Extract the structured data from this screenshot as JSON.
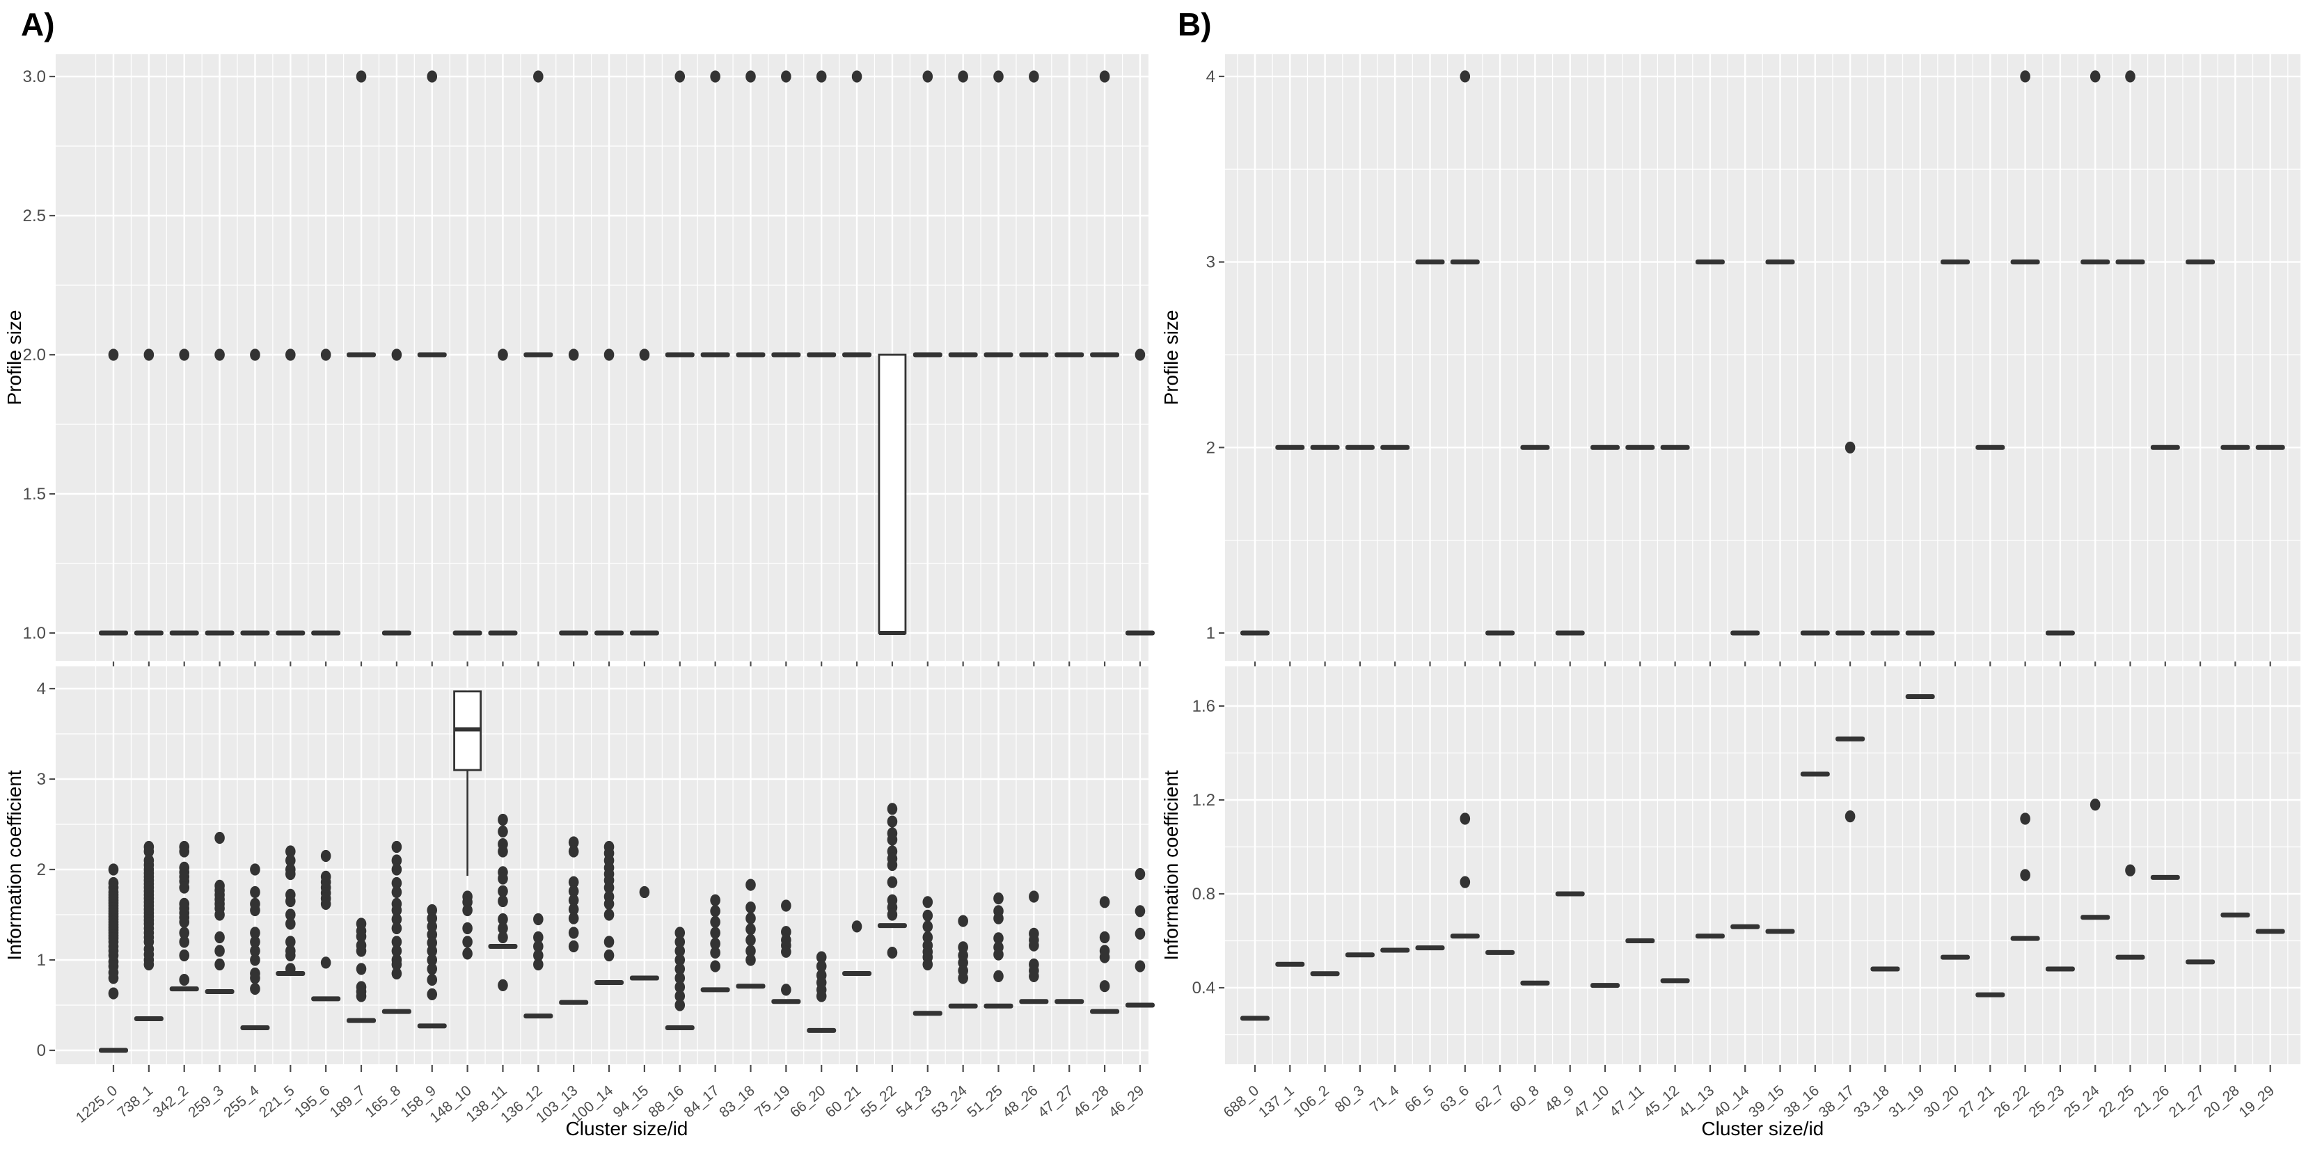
{
  "figure": {
    "panel_a_label": "A)",
    "panel_b_label": "B)",
    "colors": {
      "panel_bg": "#EBEBEB",
      "grid": "#FFFFFF",
      "mark": "#333333",
      "axis_text": "#4D4D4D",
      "title_text": "#000000",
      "box_fill": "#FFFFFF"
    }
  },
  "chart_data": [
    {
      "id": "a_top",
      "type": "boxplot-scatter",
      "title": "",
      "xlabel": "",
      "ylabel": "Profile size",
      "ytick_values": [
        3.0,
        2.5,
        2.0,
        1.5,
        1.0
      ],
      "ytick_labels": [
        "3.0",
        "2.5",
        "2.0",
        "1.5",
        "1.0"
      ],
      "ylim": [
        0.95,
        3.08
      ],
      "show_x_tick_labels": false,
      "categories": [
        "1225_0",
        "738_1",
        "342_2",
        "259_3",
        "255_4",
        "221_5",
        "195_6",
        "189_7",
        "165_8",
        "158_9",
        "148_10",
        "138_11",
        "136_12",
        "103_13",
        "100_14",
        "94_15",
        "88_16",
        "84_17",
        "83_18",
        "75_19",
        "66_20",
        "60_21",
        "55_22",
        "54_23",
        "53_24",
        "51_25",
        "48_26",
        "47_27",
        "46_28",
        "46_29"
      ],
      "dashes": [
        [
          0,
          1
        ],
        [
          1,
          1
        ],
        [
          2,
          1
        ],
        [
          3,
          1
        ],
        [
          4,
          1
        ],
        [
          5,
          1
        ],
        [
          6,
          1
        ],
        [
          7,
          2
        ],
        [
          8,
          1
        ],
        [
          9,
          2
        ],
        [
          10,
          1
        ],
        [
          11,
          1
        ],
        [
          12,
          2
        ],
        [
          13,
          1
        ],
        [
          14,
          1
        ],
        [
          15,
          1
        ],
        [
          16,
          2
        ],
        [
          17,
          2
        ],
        [
          18,
          2
        ],
        [
          19,
          2
        ],
        [
          20,
          2
        ],
        [
          21,
          2
        ],
        [
          23,
          2
        ],
        [
          24,
          2
        ],
        [
          25,
          2
        ],
        [
          26,
          2
        ],
        [
          27,
          2
        ],
        [
          28,
          2
        ],
        [
          29,
          1
        ]
      ],
      "dots": [
        [
          0,
          2
        ],
        [
          1,
          2
        ],
        [
          2,
          2
        ],
        [
          3,
          2
        ],
        [
          4,
          2
        ],
        [
          5,
          2
        ],
        [
          6,
          2
        ],
        [
          7,
          3
        ],
        [
          8,
          2
        ],
        [
          9,
          3
        ],
        [
          11,
          2
        ],
        [
          12,
          3
        ],
        [
          13,
          2
        ],
        [
          14,
          2
        ],
        [
          15,
          2
        ],
        [
          16,
          3
        ],
        [
          17,
          3
        ],
        [
          18,
          3
        ],
        [
          19,
          3
        ],
        [
          20,
          3
        ],
        [
          21,
          3
        ],
        [
          23,
          3
        ],
        [
          24,
          3
        ],
        [
          25,
          3
        ],
        [
          26,
          3
        ],
        [
          28,
          3
        ],
        [
          29,
          2
        ]
      ],
      "boxes": [
        {
          "col": 22,
          "q1": 1.0,
          "median": 1.0,
          "q3": 2.0
        }
      ]
    },
    {
      "id": "b_top",
      "type": "boxplot-scatter",
      "title": "",
      "xlabel": "",
      "ylabel": "Profile size",
      "ytick_values": [
        4,
        3,
        2,
        1
      ],
      "ytick_labels": [
        "4",
        "3",
        "2",
        "1"
      ],
      "ylim": [
        0.93,
        4.12
      ],
      "show_x_tick_labels": false,
      "categories": [
        "688_0",
        "137_1",
        "106_2",
        "80_3",
        "71_4",
        "66_5",
        "63_6",
        "62_7",
        "60_8",
        "48_9",
        "47_10",
        "47_11",
        "45_12",
        "41_13",
        "40_14",
        "39_15",
        "38_16",
        "38_17",
        "33_18",
        "31_19",
        "30_20",
        "27_21",
        "26_22",
        "25_23",
        "25_24",
        "22_25",
        "21_26",
        "21_27",
        "20_28",
        "19_29"
      ],
      "dashes": [
        [
          0,
          1
        ],
        [
          1,
          2
        ],
        [
          2,
          2
        ],
        [
          3,
          2
        ],
        [
          4,
          2
        ],
        [
          5,
          3
        ],
        [
          6,
          3
        ],
        [
          7,
          1
        ],
        [
          8,
          2
        ],
        [
          9,
          1
        ],
        [
          10,
          2
        ],
        [
          11,
          2
        ],
        [
          12,
          2
        ],
        [
          13,
          3
        ],
        [
          14,
          1
        ],
        [
          15,
          3
        ],
        [
          16,
          1
        ],
        [
          17,
          1
        ],
        [
          18,
          1
        ],
        [
          19,
          1
        ],
        [
          20,
          3
        ],
        [
          21,
          2
        ],
        [
          22,
          3
        ],
        [
          23,
          1
        ],
        [
          24,
          3
        ],
        [
          25,
          3
        ],
        [
          26,
          2
        ],
        [
          27,
          3
        ],
        [
          28,
          2
        ],
        [
          29,
          2
        ]
      ],
      "dots": [
        [
          6,
          4
        ],
        [
          17,
          2
        ],
        [
          22,
          4
        ],
        [
          24,
          4
        ],
        [
          25,
          4
        ]
      ],
      "boxes": []
    },
    {
      "id": "a_bottom",
      "type": "boxplot-scatter",
      "title": "",
      "xlabel": "Cluster size/id",
      "ylabel": "Information coefficient",
      "ytick_values": [
        4,
        3,
        2,
        1,
        0
      ],
      "ytick_labels": [
        "4",
        "3",
        "2",
        "1",
        "0"
      ],
      "ylim": [
        -0.15,
        4.25
      ],
      "show_x_tick_labels": true,
      "categories": [
        "1225_0",
        "738_1",
        "342_2",
        "259_3",
        "255_4",
        "221_5",
        "195_6",
        "189_7",
        "165_8",
        "158_9",
        "148_10",
        "138_11",
        "136_12",
        "103_13",
        "100_14",
        "94_15",
        "88_16",
        "84_17",
        "83_18",
        "75_19",
        "66_20",
        "60_21",
        "55_22",
        "54_23",
        "53_24",
        "51_25",
        "48_26",
        "47_27",
        "46_28",
        "46_29"
      ],
      "dashes": [
        [
          0,
          0.0
        ],
        [
          1,
          0.35
        ],
        [
          2,
          0.68
        ],
        [
          3,
          0.65
        ],
        [
          4,
          0.25
        ],
        [
          5,
          0.85
        ],
        [
          6,
          0.57
        ],
        [
          7,
          0.33
        ],
        [
          8,
          0.43
        ],
        [
          9,
          0.27
        ],
        [
          11,
          1.15
        ],
        [
          12,
          0.38
        ],
        [
          13,
          0.53
        ],
        [
          14,
          0.75
        ],
        [
          15,
          0.8
        ],
        [
          16,
          0.25
        ],
        [
          17,
          0.67
        ],
        [
          18,
          0.71
        ],
        [
          19,
          0.54
        ],
        [
          20,
          0.22
        ],
        [
          21,
          0.85
        ],
        [
          22,
          1.38
        ],
        [
          23,
          0.41
        ],
        [
          24,
          0.49
        ],
        [
          25,
          0.49
        ],
        [
          26,
          0.54
        ],
        [
          27,
          0.54
        ],
        [
          28,
          0.43
        ],
        [
          29,
          0.5
        ]
      ],
      "dot_columns": {
        "0": [
          2.0,
          1.85,
          1.8,
          1.75,
          1.72,
          1.69,
          1.66,
          1.63,
          1.6,
          1.57,
          1.54,
          1.51,
          1.48,
          1.45,
          1.42,
          1.39,
          1.36,
          1.33,
          1.3,
          1.27,
          1.24,
          1.2,
          1.15,
          1.1,
          1.05,
          0.98,
          0.93,
          0.86,
          0.8,
          0.63
        ],
        "1": [
          2.25,
          2.2,
          2.1,
          2.05,
          2.0,
          1.96,
          1.92,
          1.88,
          1.84,
          1.8,
          1.76,
          1.72,
          1.68,
          1.64,
          1.6,
          1.56,
          1.52,
          1.48,
          1.44,
          1.4,
          1.35,
          1.3,
          1.25,
          1.2,
          1.12,
          1.06,
          1.0,
          0.95
        ],
        "2": [
          2.25,
          2.2,
          2.02,
          1.97,
          1.92,
          1.87,
          1.8,
          1.62,
          1.57,
          1.52,
          1.47,
          1.42,
          1.3,
          1.2,
          1.05,
          0.78
        ],
        "3": [
          2.35,
          1.82,
          1.77,
          1.72,
          1.67,
          1.62,
          1.57,
          1.5,
          1.25,
          1.1,
          0.95
        ],
        "4": [
          2.0,
          1.75,
          1.62,
          1.55,
          1.3,
          1.2,
          1.1,
          1.0,
          0.85,
          0.8,
          0.68
        ],
        "5": [
          2.2,
          2.1,
          2.0,
          1.95,
          1.72,
          1.65,
          1.5,
          1.4,
          1.2,
          1.1,
          1.05,
          0.9
        ],
        "6": [
          2.15,
          1.92,
          1.86,
          1.8,
          1.74,
          1.68,
          1.62,
          0.97
        ],
        "7": [
          1.4,
          1.32,
          1.26,
          1.16,
          1.1,
          0.9,
          0.7,
          0.65,
          0.6
        ],
        "8": [
          2.25,
          2.1,
          2.0,
          1.85,
          1.75,
          1.62,
          1.55,
          1.45,
          1.35,
          1.2,
          1.1,
          1.0,
          0.95,
          0.85
        ],
        "9": [
          1.55,
          1.46,
          1.37,
          1.28,
          1.19,
          1.1,
          1.0,
          0.9,
          0.78,
          0.62
        ],
        "10": [
          1.7,
          1.64,
          1.55,
          1.35,
          1.2,
          1.07
        ],
        "11": [
          2.55,
          2.42,
          2.28,
          2.2,
          1.97,
          1.9,
          1.76,
          1.65,
          1.45,
          1.35,
          1.25,
          0.72
        ],
        "12": [
          1.45,
          1.25,
          1.15,
          1.05,
          0.95
        ],
        "13": [
          2.3,
          2.2,
          1.86,
          1.76,
          1.66,
          1.56,
          1.46,
          1.3,
          1.15
        ],
        "14": [
          2.25,
          2.18,
          2.1,
          2.02,
          1.95,
          1.88,
          1.8,
          1.7,
          1.62,
          1.5,
          1.2,
          1.05
        ],
        "15": [
          1.75
        ],
        "16": [
          1.3,
          1.2,
          1.1,
          1.0,
          0.9,
          0.8,
          0.7,
          0.6,
          0.5
        ],
        "17": [
          1.66,
          1.54,
          1.42,
          1.3,
          1.18,
          1.08,
          0.93
        ],
        "18": [
          1.83,
          1.58,
          1.46,
          1.34,
          1.22,
          1.1,
          1.0
        ],
        "19": [
          1.6,
          1.31,
          1.22,
          1.16,
          1.09,
          0.67
        ],
        "20": [
          1.03,
          0.93,
          0.83,
          0.75,
          0.67,
          0.6
        ],
        "21": [
          1.37
        ],
        "22": [
          2.67,
          2.53,
          2.4,
          2.33,
          2.2,
          2.12,
          2.05,
          1.86,
          1.66,
          1.58,
          1.5,
          1.08
        ],
        "23": [
          1.64,
          1.49,
          1.37,
          1.25,
          1.16,
          1.09,
          1.03,
          0.95
        ],
        "24": [
          1.43,
          1.14,
          1.05,
          0.97,
          0.88,
          0.8
        ],
        "25": [
          1.68,
          1.54,
          1.46,
          1.24,
          1.14,
          1.06,
          0.82
        ],
        "26": [
          1.7,
          1.29,
          1.22,
          1.16,
          0.95,
          0.88,
          0.82
        ],
        "28": [
          1.64,
          1.25,
          1.1,
          1.03,
          0.71
        ],
        "29": [
          1.95,
          1.54,
          1.29,
          0.93
        ]
      },
      "boxes": [
        {
          "col": 10,
          "q1": 3.1,
          "median": 3.55,
          "q3": 3.97,
          "whisker_low": 1.93
        }
      ]
    },
    {
      "id": "b_bottom",
      "type": "boxplot-scatter",
      "title": "",
      "xlabel": "Cluster size/id",
      "ylabel": "Information coefficient",
      "ytick_values": [
        1.6,
        1.2,
        0.8,
        0.4
      ],
      "ytick_labels": [
        "1.6",
        "1.2",
        "0.8",
        "0.4"
      ],
      "ylim": [
        0.07,
        1.77
      ],
      "show_x_tick_labels": true,
      "categories": [
        "688_0",
        "137_1",
        "106_2",
        "80_3",
        "71_4",
        "66_5",
        "63_6",
        "62_7",
        "60_8",
        "48_9",
        "47_10",
        "47_11",
        "45_12",
        "41_13",
        "40_14",
        "39_15",
        "38_16",
        "38_17",
        "33_18",
        "31_19",
        "30_20",
        "27_21",
        "26_22",
        "25_23",
        "25_24",
        "22_25",
        "21_26",
        "21_27",
        "20_28",
        "19_29"
      ],
      "dashes": [
        [
          0,
          0.27
        ],
        [
          1,
          0.5
        ],
        [
          2,
          0.46
        ],
        [
          3,
          0.54
        ],
        [
          4,
          0.56
        ],
        [
          5,
          0.57
        ],
        [
          6,
          0.62
        ],
        [
          7,
          0.55
        ],
        [
          8,
          0.42
        ],
        [
          9,
          0.8
        ],
        [
          10,
          0.41
        ],
        [
          11,
          0.6
        ],
        [
          12,
          0.43
        ],
        [
          13,
          0.62
        ],
        [
          14,
          0.66
        ],
        [
          15,
          0.64
        ],
        [
          16,
          1.31
        ],
        [
          17,
          1.46
        ],
        [
          18,
          0.48
        ],
        [
          19,
          1.64
        ],
        [
          20,
          0.53
        ],
        [
          21,
          0.37
        ],
        [
          22,
          0.61
        ],
        [
          23,
          0.48
        ],
        [
          24,
          0.7
        ],
        [
          25,
          0.53
        ],
        [
          26,
          0.87
        ],
        [
          27,
          0.51
        ],
        [
          28,
          0.71
        ],
        [
          29,
          0.64
        ]
      ],
      "dots": [
        [
          6,
          1.12
        ],
        [
          6,
          0.85
        ],
        [
          17,
          1.13
        ],
        [
          22,
          1.12
        ],
        [
          22,
          0.88
        ],
        [
          24,
          1.18
        ],
        [
          25,
          0.9
        ]
      ],
      "boxes": []
    }
  ]
}
